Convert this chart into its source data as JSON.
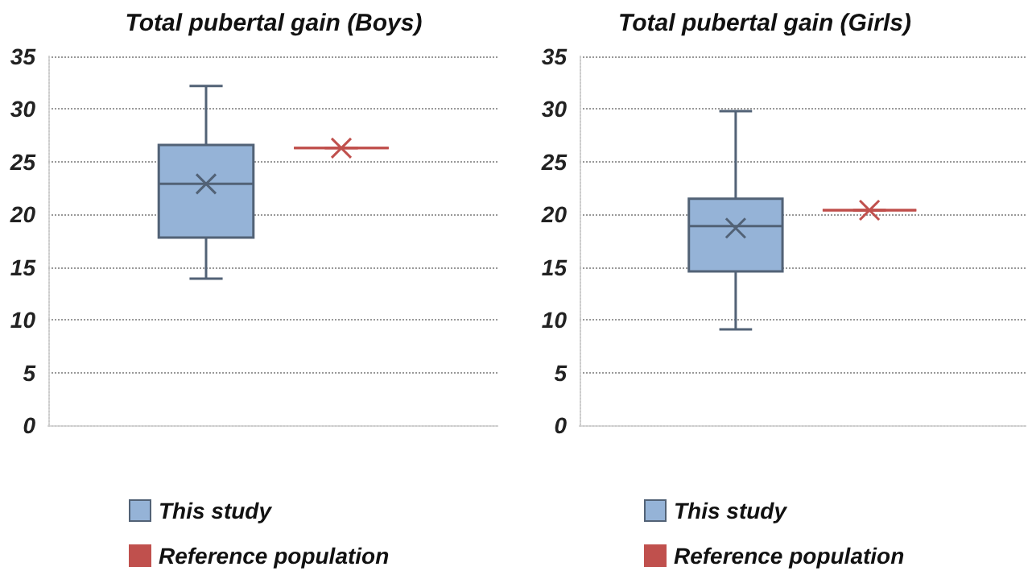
{
  "chart_data": [
    {
      "type": "box",
      "title": "Total pubertal gain (Boys)",
      "categories": [
        null
      ],
      "ylim": [
        0,
        35
      ],
      "yticks": [
        0,
        5,
        10,
        15,
        20,
        25,
        30,
        35
      ],
      "grid": "y",
      "legend": "bottom",
      "series": [
        {
          "name": "This study",
          "color": "#95b3d7",
          "boxes": [
            {
              "low": 13.9,
              "q1": 17.8,
              "median": 22.9,
              "q3": 26.6,
              "high": 32.2,
              "mean": 22.9
            }
          ]
        },
        {
          "name": "Reference population",
          "color": "#c0504d",
          "boxes": [
            {
              "low": 26.3,
              "q1": 26.3,
              "median": 26.3,
              "q3": 26.3,
              "high": 26.3,
              "mean": 26.3
            }
          ]
        }
      ]
    },
    {
      "type": "box",
      "title": "Total pubertal gain (Girls)",
      "categories": [
        null
      ],
      "ylim": [
        0,
        35
      ],
      "yticks": [
        0,
        5,
        10,
        15,
        20,
        25,
        30,
        35
      ],
      "grid": "y",
      "legend": "bottom",
      "series": [
        {
          "name": "This study",
          "color": "#95b3d7",
          "boxes": [
            {
              "low": 9.1,
              "q1": 14.6,
              "median": 18.9,
              "q3": 21.5,
              "high": 29.8,
              "mean": 18.7
            }
          ]
        },
        {
          "name": "Reference population",
          "color": "#c0504d",
          "boxes": [
            {
              "low": 20.4,
              "q1": 20.4,
              "median": 20.4,
              "q3": 20.4,
              "high": 20.4,
              "mean": 20.4
            }
          ]
        }
      ]
    }
  ]
}
